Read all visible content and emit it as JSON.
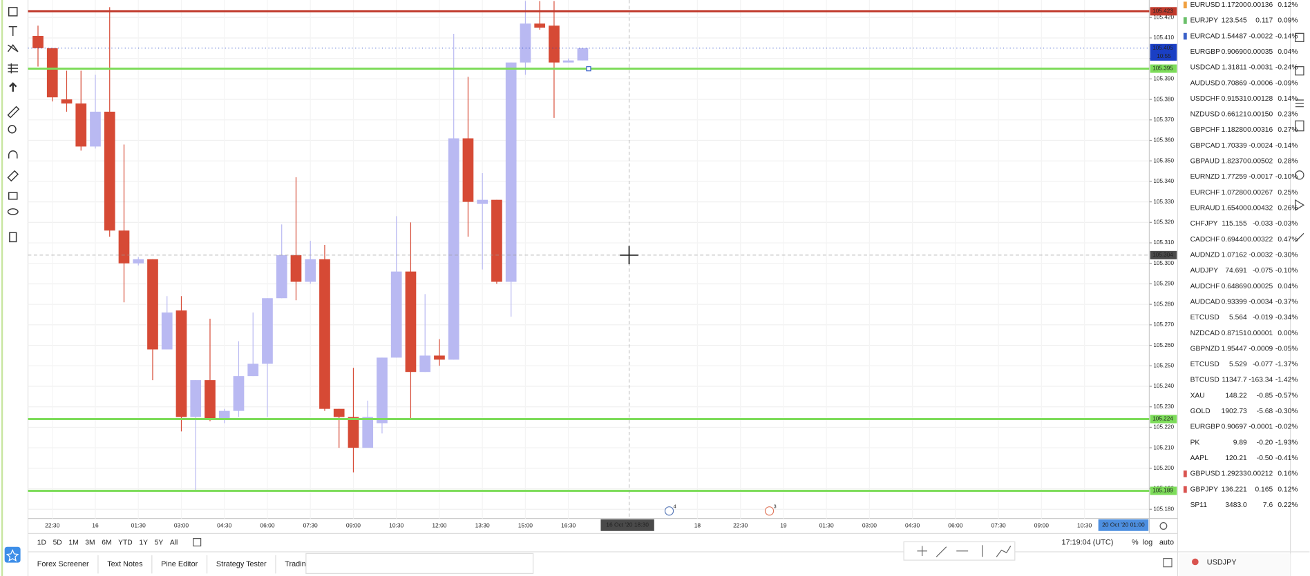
{
  "chart_data": {
    "type": "candlestick",
    "symbol": "USDJPY",
    "ylim": [
      105.1755,
      105.4285
    ],
    "yticks": [
      {
        "value": 105.18,
        "label": "105.180"
      },
      {
        "value": 105.19,
        "label": "105.190"
      },
      {
        "value": 105.2,
        "label": "105.200"
      },
      {
        "value": 105.21,
        "label": "105.210"
      },
      {
        "value": 105.22,
        "label": "105.220"
      },
      {
        "value": 105.23,
        "label": "105.230"
      },
      {
        "value": 105.24,
        "label": "105.240"
      },
      {
        "value": 105.25,
        "label": "105.250"
      },
      {
        "value": 105.26,
        "label": "105.260"
      },
      {
        "value": 105.27,
        "label": "105.270"
      },
      {
        "value": 105.28,
        "label": "105.280"
      },
      {
        "value": 105.29,
        "label": "105.290"
      },
      {
        "value": 105.3,
        "label": "105.300"
      },
      {
        "value": 105.31,
        "label": "105.310"
      },
      {
        "value": 105.32,
        "label": "105.320"
      },
      {
        "value": 105.33,
        "label": "105.330"
      },
      {
        "value": 105.34,
        "label": "105.340"
      },
      {
        "value": 105.35,
        "label": "105.350"
      },
      {
        "value": 105.36,
        "label": "105.360"
      },
      {
        "value": 105.37,
        "label": "105.370"
      },
      {
        "value": 105.38,
        "label": "105.380"
      },
      {
        "value": 105.39,
        "label": "105.390"
      },
      {
        "value": 105.4,
        "label": "105.400"
      },
      {
        "value": 105.41,
        "label": "105.410"
      },
      {
        "value": 105.42,
        "label": "105.420"
      }
    ],
    "grid": true,
    "up_color": "#b9b9f2",
    "down_color": "#d64a35",
    "categories": [
      null,
      "22:30",
      null,
      null,
      "16",
      null,
      null,
      "01:30",
      null,
      null,
      "03:00",
      null,
      null,
      "04:30",
      null,
      null,
      "06:00",
      null,
      null,
      "07:30",
      null,
      null,
      "09:00",
      null,
      null,
      "10:30",
      null,
      null,
      "12:00",
      null,
      null,
      "13:30",
      null,
      null,
      "15:00",
      null,
      null,
      "16:30",
      null,
      null,
      null,
      null,
      null,
      null,
      null,
      null,
      "18",
      null,
      null,
      "22:30",
      null,
      null,
      "19",
      null,
      null,
      "01:30",
      null,
      null,
      "03:00",
      null,
      null,
      "04:30",
      null,
      null,
      "06:00",
      null,
      null,
      "07:30",
      null,
      null,
      "09:00",
      null,
      null,
      "10:30",
      null
    ],
    "open": [
      105.411,
      105.405,
      105.38,
      105.378,
      105.357,
      105.374,
      105.316,
      105.3,
      105.302,
      105.258,
      105.277,
      105.225,
      105.243,
      105.224,
      105.228,
      105.245,
      105.251,
      105.283,
      105.304,
      105.291,
      105.302,
      105.229,
      105.225,
      105.21,
      105.222,
      105.254,
      105.296,
      105.247,
      105.255,
      105.253,
      105.361,
      105.329,
      105.331,
      105.291,
      105.398,
      105.417,
      105.416,
      105.398,
      105.399,
      null,
      null,
      null,
      null,
      null,
      null,
      null,
      null,
      null,
      null,
      null,
      null,
      null,
      null,
      null,
      null,
      null,
      null,
      null,
      null,
      null,
      null,
      null,
      null,
      null,
      null,
      null,
      null,
      null,
      null,
      null,
      null,
      null,
      null,
      null,
      null
    ],
    "high": [
      105.416,
      105.405,
      105.394,
      105.394,
      105.392,
      105.425,
      105.358,
      105.303,
      105.302,
      105.284,
      105.284,
      105.243,
      105.273,
      105.229,
      105.262,
      105.276,
      105.283,
      105.319,
      105.342,
      105.311,
      105.309,
      105.229,
      105.249,
      105.233,
      105.254,
      105.323,
      105.32,
      105.285,
      105.263,
      105.412,
      105.391,
      105.344,
      105.331,
      105.398,
      105.428,
      105.428,
      105.428,
      105.4,
      105.405,
      null,
      null,
      null,
      null,
      null,
      null,
      null,
      null,
      null,
      null,
      null,
      null,
      null,
      null,
      null,
      null,
      null,
      null,
      null,
      null,
      null,
      null,
      null,
      null,
      null,
      null,
      null,
      null,
      null,
      null,
      null,
      null,
      null,
      null,
      null,
      null
    ],
    "low": [
      105.396,
      105.379,
      105.374,
      105.355,
      105.356,
      105.313,
      105.281,
      105.299,
      105.243,
      105.258,
      105.218,
      105.189,
      105.223,
      105.222,
      105.225,
      105.245,
      105.225,
      105.283,
      105.282,
      105.29,
      105.228,
      105.21,
      105.198,
      105.21,
      105.217,
      105.254,
      105.224,
      105.247,
      105.25,
      105.253,
      105.313,
      105.297,
      105.29,
      105.274,
      105.392,
      105.414,
      105.371,
      105.398,
      105.399,
      null,
      null,
      null,
      null,
      null,
      null,
      null,
      null,
      null,
      null,
      null,
      null,
      null,
      null,
      null,
      null,
      null,
      null,
      null,
      null,
      null,
      null,
      null,
      null,
      null,
      null,
      null,
      null,
      null,
      null,
      null,
      null,
      null,
      null,
      null,
      null
    ],
    "close": [
      105.405,
      105.381,
      105.378,
      105.357,
      105.374,
      105.316,
      105.3,
      105.302,
      105.258,
      105.276,
      105.225,
      105.243,
      105.224,
      105.228,
      105.245,
      105.251,
      105.283,
      105.304,
      105.291,
      105.302,
      105.229,
      105.225,
      105.21,
      105.225,
      105.254,
      105.296,
      105.247,
      105.255,
      105.253,
      105.361,
      105.33,
      105.331,
      105.291,
      105.398,
      105.417,
      105.415,
      105.398,
      105.399,
      105.405,
      null,
      null,
      null,
      null,
      null,
      null,
      null,
      null,
      null,
      null,
      null,
      null,
      null,
      null,
      null,
      null,
      null,
      null,
      null,
      null,
      null,
      null,
      null,
      null,
      null,
      null,
      null,
      null,
      null,
      null,
      null,
      null,
      null,
      null,
      null,
      null
    ],
    "levels": [
      {
        "value": 105.423,
        "color": "#c0392b"
      },
      {
        "value": 105.395,
        "color": "#7ddc5a"
      },
      {
        "value": 105.224,
        "color": "#7ddc5a"
      },
      {
        "value": 105.189,
        "color": "#7ddc5a"
      }
    ],
    "last_price": {
      "value": 105.405,
      "countdown": "10:55",
      "color": "#1a3fc4"
    },
    "crosshair": {
      "price": 105.304,
      "time": "16 Oct '20  18:30"
    },
    "range_end": "20 Oct '20  01:00",
    "events": [
      "4",
      "3"
    ]
  },
  "timeframes": [
    "1D",
    "5D",
    "1M",
    "3M",
    "6M",
    "YTD",
    "1Y",
    "5Y",
    "All"
  ],
  "status": {
    "clock": "17:19:04 (UTC)",
    "percent": "%",
    "log": "log",
    "auto": "auto"
  },
  "bottom_tabs": [
    "Forex Screener",
    "Text Notes",
    "Pine Editor",
    "Strategy Tester",
    "Trading"
  ],
  "watchlist": {
    "rows": [
      {
        "symbol": "EURUSD",
        "last": "1.17200",
        "change": "0.00136",
        "change_pct": "0.12%",
        "flag": "#f0a040"
      },
      {
        "symbol": "EURJPY",
        "last": "123.545",
        "change": "0.117",
        "change_pct": "0.09%",
        "flag": "#6abf69"
      },
      {
        "symbol": "EURCAD",
        "last": "1.54487",
        "change": "-0.0022",
        "change_pct": "-0.14%",
        "flag": "#3a60c8"
      },
      {
        "symbol": "EURGBP",
        "last": "0.90690",
        "change": "0.00035",
        "change_pct": "0.04%"
      },
      {
        "symbol": "USDCAD",
        "last": "1.31811",
        "change": "-0.0031",
        "change_pct": "-0.24%"
      },
      {
        "symbol": "AUDUSD",
        "last": "0.70869",
        "change": "-0.0006",
        "change_pct": "-0.09%"
      },
      {
        "symbol": "USDCHF",
        "last": "0.91531",
        "change": "0.00128",
        "change_pct": "0.14%"
      },
      {
        "symbol": "NZDUSD",
        "last": "0.66121",
        "change": "0.00150",
        "change_pct": "0.23%"
      },
      {
        "symbol": "GBPCHF",
        "last": "1.18280",
        "change": "0.00316",
        "change_pct": "0.27%"
      },
      {
        "symbol": "GBPCAD",
        "last": "1.70339",
        "change": "-0.0024",
        "change_pct": "-0.14%"
      },
      {
        "symbol": "GBPAUD",
        "last": "1.82370",
        "change": "0.00502",
        "change_pct": "0.28%"
      },
      {
        "symbol": "EURNZD",
        "last": "1.77259",
        "change": "-0.0017",
        "change_pct": "-0.10%"
      },
      {
        "symbol": "EURCHF",
        "last": "1.07280",
        "change": "0.00267",
        "change_pct": "0.25%"
      },
      {
        "symbol": "EURAUD",
        "last": "1.65400",
        "change": "0.00432",
        "change_pct": "0.26%"
      },
      {
        "symbol": "CHFJPY",
        "last": "115.155",
        "change": "-0.033",
        "change_pct": "-0.03%"
      },
      {
        "symbol": "CADCHF",
        "last": "0.69440",
        "change": "0.00322",
        "change_pct": "0.47%"
      },
      {
        "symbol": "AUDNZD",
        "last": "1.07162",
        "change": "-0.0032",
        "change_pct": "-0.30%"
      },
      {
        "symbol": "AUDJPY",
        "last": "74.691",
        "change": "-0.075",
        "change_pct": "-0.10%"
      },
      {
        "symbol": "AUDCHF",
        "last": "0.64869",
        "change": "0.00025",
        "change_pct": "0.04%"
      },
      {
        "symbol": "AUDCAD",
        "last": "0.93399",
        "change": "-0.0034",
        "change_pct": "-0.37%"
      },
      {
        "symbol": "ETCUSD",
        "last": "5.564",
        "change": "-0.019",
        "change_pct": "-0.34%"
      },
      {
        "symbol": "NZDCAD",
        "last": "0.87151",
        "change": "0.00001",
        "change_pct": "0.00%"
      },
      {
        "symbol": "GBPNZD",
        "last": "1.95447",
        "change": "-0.0009",
        "change_pct": "-0.05%"
      },
      {
        "symbol": "ETCUSD",
        "last": "5.529",
        "change": "-0.077",
        "change_pct": "-1.37%"
      },
      {
        "symbol": "BTCUSD",
        "last": "11347.7",
        "change": "-163.34",
        "change_pct": "-1.42%"
      },
      {
        "symbol": "XAU",
        "last": "148.22",
        "change": "-0.85",
        "change_pct": "-0.57%"
      },
      {
        "symbol": "GOLD",
        "last": "1902.73",
        "change": "-5.68",
        "change_pct": "-0.30%"
      },
      {
        "symbol": "EURGBP",
        "last": "0.90697",
        "change": "-0.0001",
        "change_pct": "-0.02%"
      },
      {
        "symbol": "PK",
        "last": "9.89",
        "change": "-0.20",
        "change_pct": "-1.93%"
      },
      {
        "symbol": "AAPL",
        "last": "120.21",
        "change": "-0.50",
        "change_pct": "-0.41%"
      },
      {
        "symbol": "GBPUSD",
        "last": "1.29233",
        "change": "0.00212",
        "change_pct": "0.16%",
        "flag": "#d9534f"
      },
      {
        "symbol": "GBPJPY",
        "last": "136.221",
        "change": "0.165",
        "change_pct": "0.12%",
        "flag": "#d9534f"
      },
      {
        "symbol": "SP11",
        "last": "3483.0",
        "change": "7.6",
        "change_pct": "0.22%"
      }
    ]
  }
}
